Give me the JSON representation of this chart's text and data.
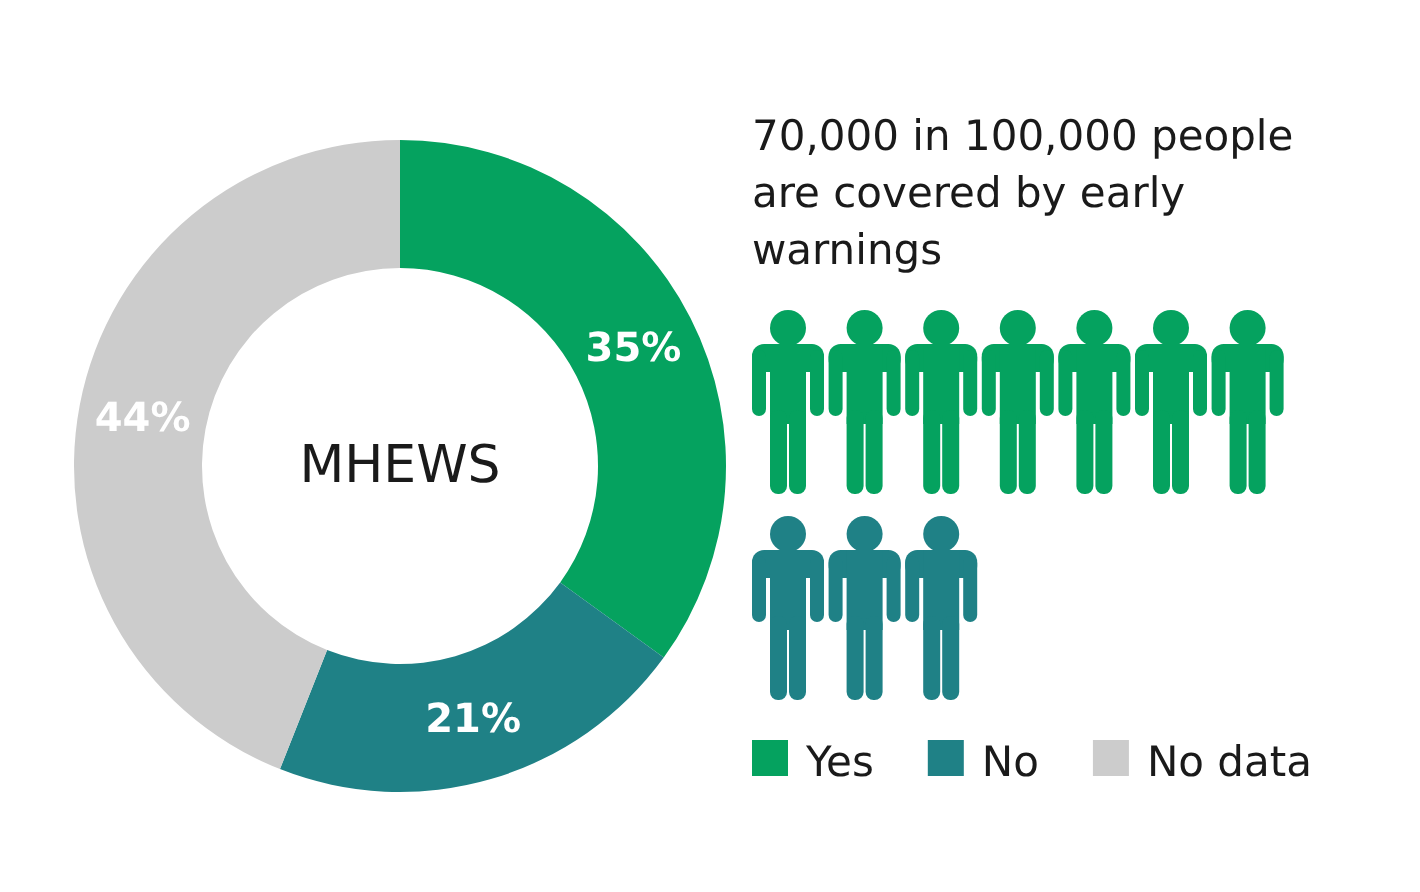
{
  "chart_data": [
    {
      "type": "donut",
      "title": "MHEWS",
      "categories": [
        "Yes",
        "No",
        "No data"
      ],
      "values": [
        35,
        21,
        44
      ],
      "colors": [
        "#05a25f",
        "#1f8186",
        "#cccccc"
      ],
      "value_labels": [
        "35%",
        "21%",
        "44%"
      ],
      "legend": "bottom right"
    },
    {
      "type": "other",
      "title": "70,000 in 100,000 people are covered by early warnings",
      "colors": [
        "#05a25f",
        "#05a25f",
        "#05a25f",
        "#05a25f",
        "#05a25f",
        "#05a25f",
        "#05a25f",
        "#1f8186",
        "#1f8186",
        "#1f8186"
      ]
    }
  ]
}
